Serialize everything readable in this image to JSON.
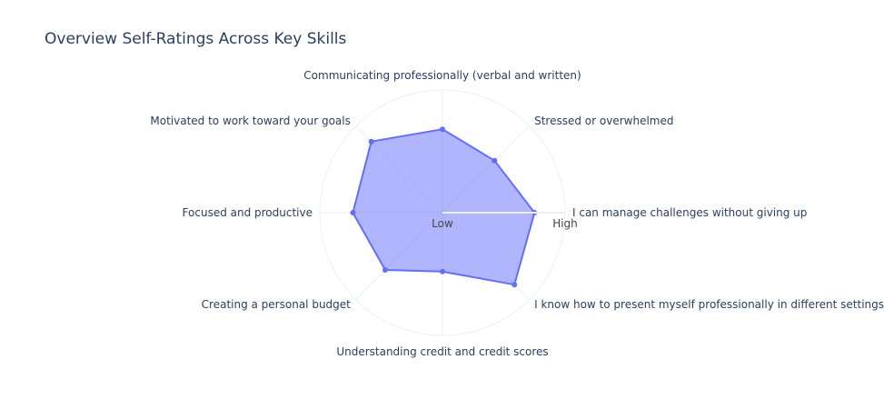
{
  "chart_data": {
    "type": "radar",
    "title": "Overview Self-Ratings Across Key Skills",
    "categories": [
      "I can manage challenges without giving up",
      "Stressed or overwhelmed",
      "Communicating professionally (verbal and written)",
      "Motivated to work toward your goals",
      "Focused and productive",
      "Creating a personal budget",
      "Understanding credit and credit scores",
      "I know how to present myself professionally in different settings"
    ],
    "values": [
      0.75,
      0.6,
      0.68,
      0.82,
      0.73,
      0.66,
      0.48,
      0.83
    ],
    "radial_ticks": [
      "Low",
      "High"
    ],
    "radial_range": [
      0,
      1
    ],
    "fill_color": "#636efa",
    "fill_opacity": 0.5,
    "grid": true,
    "legend": "none"
  }
}
